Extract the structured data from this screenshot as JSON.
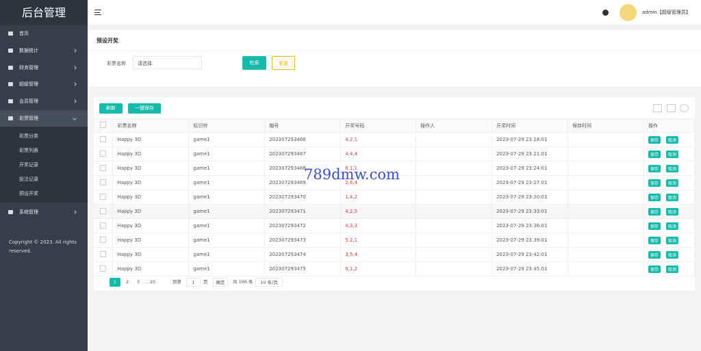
{
  "sidebar": {
    "logo": "后台管理",
    "menu": [
      "首页",
      "数据统计",
      "财务管理",
      "超级管理",
      "会员管理",
      "彩票管理",
      "系统管理"
    ],
    "submenu": [
      "彩票分类",
      "彩票列表",
      "开奖记录",
      "投注记录",
      "预设开奖"
    ],
    "copyright": "Copyright © 2023. All rights reserved."
  },
  "header": {
    "user": "admin【超级管理员】"
  },
  "page": {
    "title": "预设开奖",
    "filter_label": "彩票名称",
    "select_placeholder": "请选择",
    "search": "检索",
    "reset": "重置"
  },
  "toolbar": {
    "refresh": "刷新",
    "save_all": "一键保存"
  },
  "watermark": "789dmw.com",
  "table": {
    "columns": [
      "彩票名称",
      "标识符",
      "期号",
      "开奖号码",
      "操作人",
      "开奖时间",
      "保存时间",
      "操作"
    ],
    "actions": [
      "保存",
      "取消"
    ],
    "rows": [
      [
        "Happy 3D",
        "game1",
        "202307293466",
        "4,2,1",
        "",
        "2023-07-29 23:18:01",
        ""
      ],
      [
        "Happy 3D",
        "game1",
        "202307293467",
        "4,4,4",
        "",
        "2023-07-29 23:21:01",
        ""
      ],
      [
        "Happy 3D",
        "game1",
        "202307293468",
        "6,1,1",
        "",
        "2023-07-29 23:24:01",
        ""
      ],
      [
        "Happy 3D",
        "game1",
        "202307293469",
        "2,6,4",
        "",
        "2023-07-29 23:27:01",
        ""
      ],
      [
        "Happy 3D",
        "game1",
        "202307293470",
        "1,4,2",
        "",
        "2023-07-29 23:30:01",
        ""
      ],
      [
        "Happy 3D",
        "game1",
        "202307293471",
        "4,2,5",
        "",
        "2023-07-29 23:33:01",
        ""
      ],
      [
        "Happy 3D",
        "game1",
        "202307293472",
        "4,3,3",
        "",
        "2023-07-29 23:36:01",
        ""
      ],
      [
        "Happy 3D",
        "game1",
        "202307293473",
        "5,2,1",
        "",
        "2023-07-29 23:39:01",
        ""
      ],
      [
        "Happy 3D",
        "game1",
        "202307293474",
        "3,5,4",
        "",
        "2023-07-29 23:42:01",
        ""
      ],
      [
        "Happy 3D",
        "game1",
        "202307293475",
        "6,1,2",
        "",
        "2023-07-29 23:45:01",
        ""
      ]
    ]
  },
  "pagination": {
    "pages": [
      "1",
      "2",
      "3",
      "...",
      "20"
    ],
    "goto": "到第",
    "goto_value": "1",
    "page_unit": "页",
    "confirm": "确定",
    "total": "共 196 条",
    "per_page": "10 条/页"
  }
}
